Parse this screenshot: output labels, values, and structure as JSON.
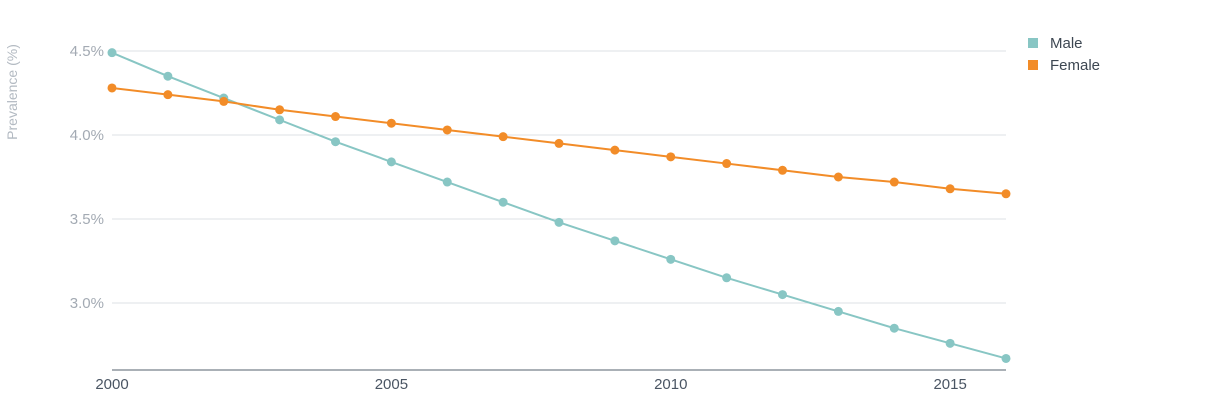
{
  "chart_data": {
    "type": "line",
    "ylabel": "Prevalence (%)",
    "xlabel": "",
    "title": "",
    "x": [
      2000,
      2001,
      2002,
      2003,
      2004,
      2005,
      2006,
      2007,
      2008,
      2009,
      2010,
      2011,
      2012,
      2013,
      2014,
      2015,
      2016
    ],
    "xticks": [
      "2000",
      "2005",
      "2010",
      "2015"
    ],
    "yticks": [
      "3.0%",
      "3.5%",
      "4.0%",
      "4.5%"
    ],
    "ylim": [
      2.6,
      4.5
    ],
    "grid": true,
    "legend_position": "top-right",
    "series": [
      {
        "name": "Male",
        "color": "#88c6c4",
        "values": [
          4.49,
          4.35,
          4.22,
          4.09,
          3.96,
          3.84,
          3.72,
          3.6,
          3.48,
          3.37,
          3.26,
          3.15,
          3.05,
          2.95,
          2.85,
          2.76,
          2.67
        ]
      },
      {
        "name": "Female",
        "color": "#f28c28",
        "values": [
          4.28,
          4.24,
          4.2,
          4.15,
          4.11,
          4.07,
          4.03,
          3.99,
          3.95,
          3.91,
          3.87,
          3.83,
          3.79,
          3.75,
          3.72,
          3.68,
          3.65
        ]
      }
    ]
  }
}
